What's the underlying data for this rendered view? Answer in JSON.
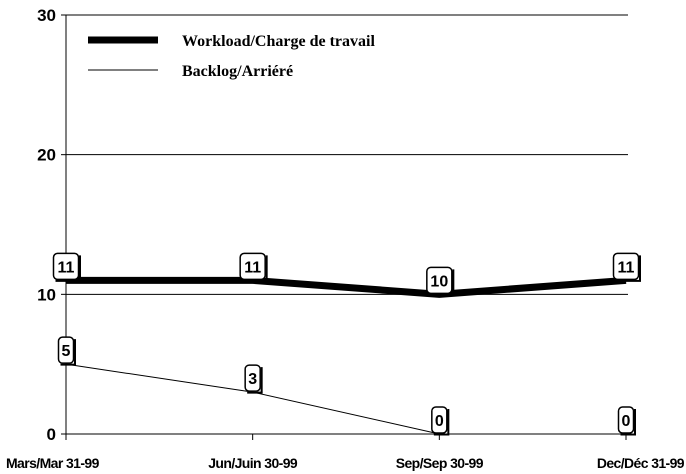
{
  "chart_data": {
    "type": "line",
    "categories": [
      "Mars/Mar 31-99",
      "Jun/Juin 30-99",
      "Sep/Sep 30-99",
      "Dec/Déc 31-99"
    ],
    "series": [
      {
        "name": "Workload/Charge de travail",
        "values": [
          11,
          11,
          10,
          11
        ],
        "color": "#000000",
        "style": "thick"
      },
      {
        "name": "Backlog/Arriéré",
        "values": [
          5,
          3,
          0,
          0
        ],
        "color": "#000000",
        "style": "thin"
      }
    ],
    "yticks": [
      0,
      10,
      20,
      30
    ],
    "ylim": [
      0,
      30
    ],
    "grid": true,
    "legend_position": "top-left",
    "data_labels": true
  }
}
